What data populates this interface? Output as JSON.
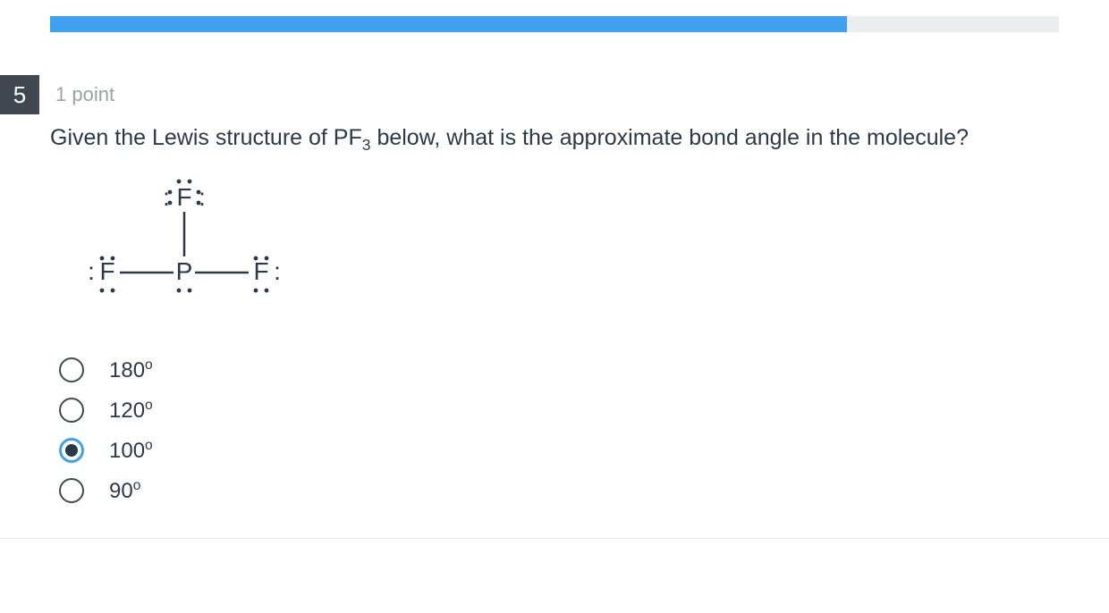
{
  "progress": {
    "track_color": "#ebedef",
    "fill_color": "#3ea2f0",
    "percent": 79
  },
  "question": {
    "number": "5",
    "number_bg": "#41484f",
    "number_fg": "#ffffff",
    "points_text": "1 point",
    "points_color": "#9aa1a9",
    "stem_pre": "Given the Lewis structure of PF",
    "stem_sub": "3",
    "stem_post": " below, what is the approximate bond angle in the molecule?",
    "stem_color": "#2b3948"
  },
  "lewis": {
    "type": "diagram",
    "atoms": [
      "F",
      "F",
      "P",
      "F"
    ],
    "bonds": [
      [
        "P",
        "F_top"
      ],
      [
        "P",
        "F_left"
      ],
      [
        "P",
        "F_right"
      ]
    ],
    "lone_pairs_note": "F atoms have 3 lone pairs each (shown as dots around three sides); P has one lone pair below",
    "stroke_color": "#2b3948",
    "text_color": "#2b3948",
    "font_size": 28,
    "line_width": 2.5
  },
  "answers": {
    "selected_index": 2,
    "radio_border": "#424a52",
    "radio_selected_border": "#3ea2f0",
    "radio_selected_dot": "#2b3948",
    "options": [
      {
        "value": "180",
        "degree": "o"
      },
      {
        "value": "120",
        "degree": "o"
      },
      {
        "value": "100",
        "degree": "o"
      },
      {
        "value": "90",
        "degree": "o"
      }
    ]
  }
}
